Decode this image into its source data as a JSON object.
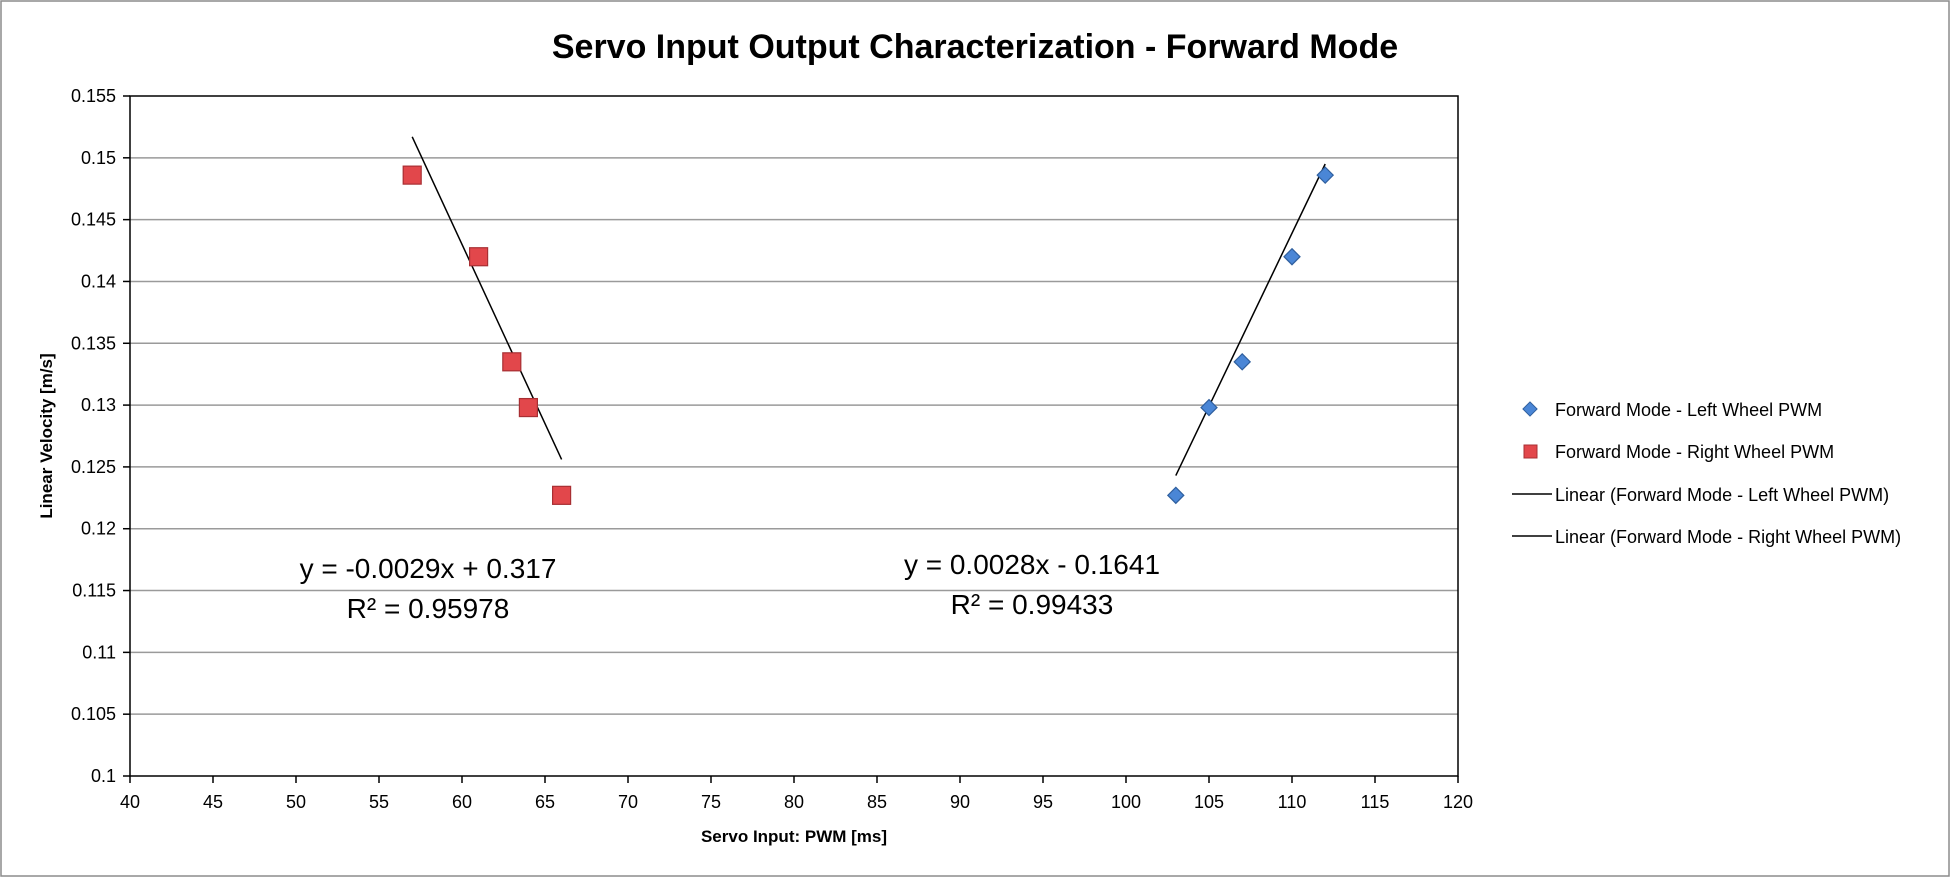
{
  "chart_data": {
    "type": "scatter",
    "title": "Servo Input Output Characterization - Forward Mode",
    "xlabel": "Servo Input: PWM [ms]",
    "ylabel": "Linear Velocity [m/s]",
    "xlim": [
      40,
      120
    ],
    "ylim": [
      0.1,
      0.155
    ],
    "xticks": [
      "40",
      "45",
      "50",
      "55",
      "60",
      "65",
      "70",
      "75",
      "80",
      "85",
      "90",
      "95",
      "100",
      "105",
      "110",
      "115",
      "120"
    ],
    "yticks": [
      "0.1",
      "0.105",
      "0.11",
      "0.115",
      "0.12",
      "0.125",
      "0.13",
      "0.135",
      "0.14",
      "0.145",
      "0.15",
      "0.155"
    ],
    "grid": "horizontal",
    "legend_position": "right",
    "series": [
      {
        "name": "Forward Mode - Left Wheel PWM",
        "marker": "diamond",
        "color": "#4a86d6",
        "points": [
          [
            103,
            0.1227
          ],
          [
            105,
            0.1298
          ],
          [
            107,
            0.1335
          ],
          [
            110,
            0.142
          ],
          [
            112,
            0.1486
          ]
        ]
      },
      {
        "name": "Forward Mode - Right Wheel PWM",
        "marker": "square",
        "color": "#e2474b",
        "points": [
          [
            57,
            0.1486
          ],
          [
            61,
            0.142
          ],
          [
            63,
            0.1335
          ],
          [
            64,
            0.1298
          ],
          [
            66,
            0.1227
          ]
        ]
      }
    ],
    "trendlines": [
      {
        "name": "Linear (Forward Mode - Left Wheel PWM)",
        "color": "#000000",
        "slope": 0.0028,
        "intercept": -0.1641,
        "x_range": [
          103,
          112
        ],
        "equation": "y = 0.0028x - 0.1641",
        "r2": "R² = 0.99433"
      },
      {
        "name": "Linear (Forward Mode - Right Wheel PWM)",
        "color": "#000000",
        "slope": -0.0029,
        "intercept": 0.317,
        "x_range": [
          57,
          66
        ],
        "equation": "y = -0.0029x + 0.317",
        "r2": "R² = 0.95978"
      }
    ]
  }
}
